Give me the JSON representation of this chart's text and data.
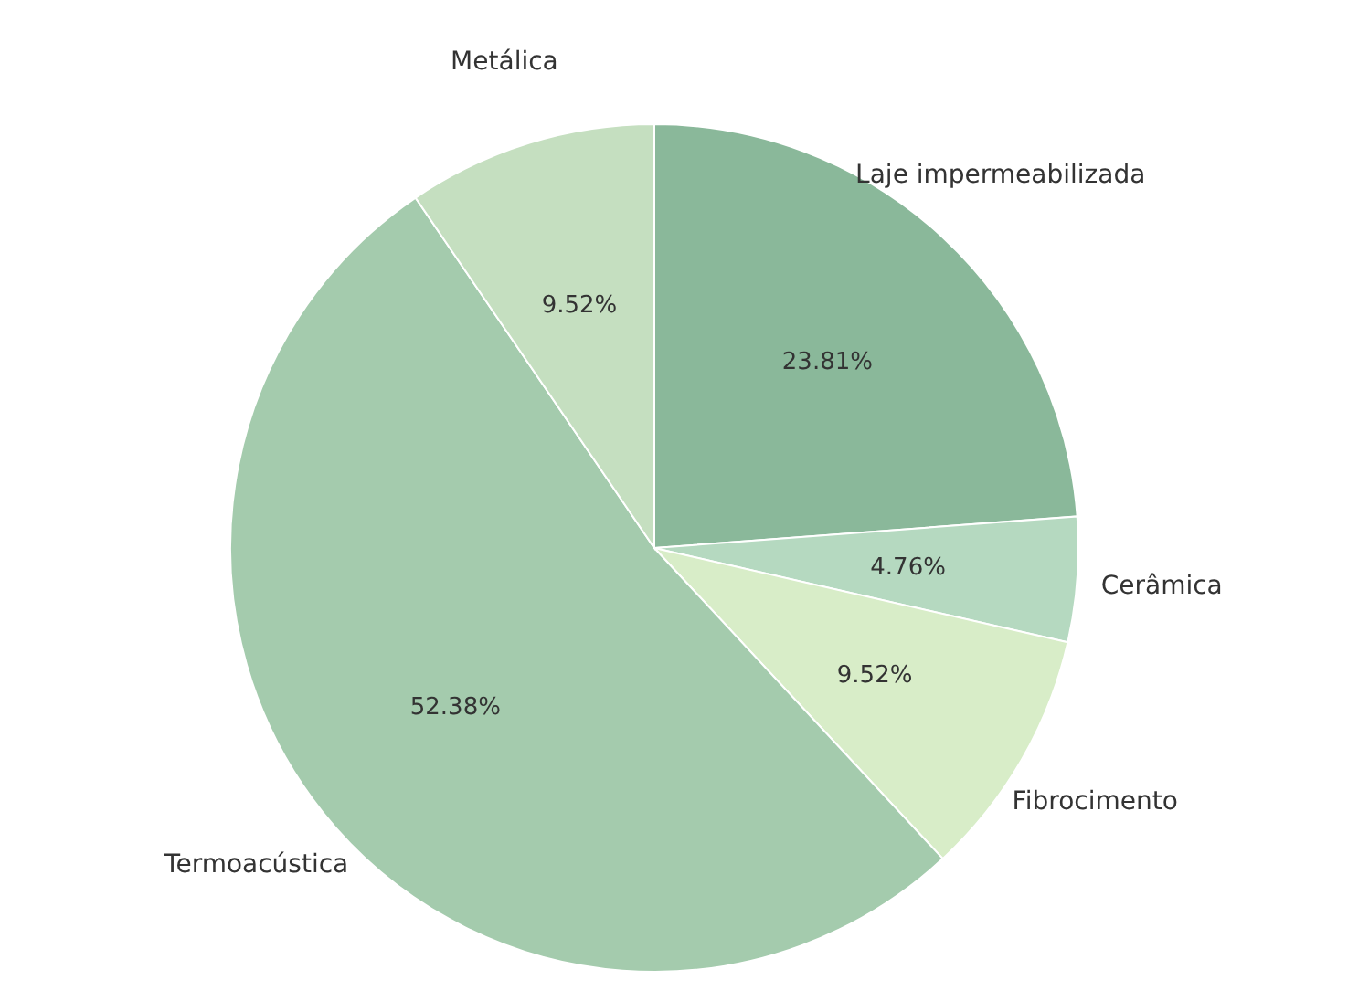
{
  "chart_data": {
    "type": "pie",
    "categories": [
      "Laje impermeabilizada",
      "Cerâmica",
      "Fibrocimento",
      "Termoacústica",
      "Metálica"
    ],
    "values": [
      23.81,
      4.76,
      9.52,
      52.38,
      9.52
    ],
    "colors": [
      "#8ab89a",
      "#b5d9c0",
      "#d8edc8",
      "#a4cbad",
      "#c5dfc0"
    ],
    "value_labels": [
      "23.81%",
      "4.76%",
      "9.52%",
      "52.38%",
      "9.52%"
    ]
  }
}
